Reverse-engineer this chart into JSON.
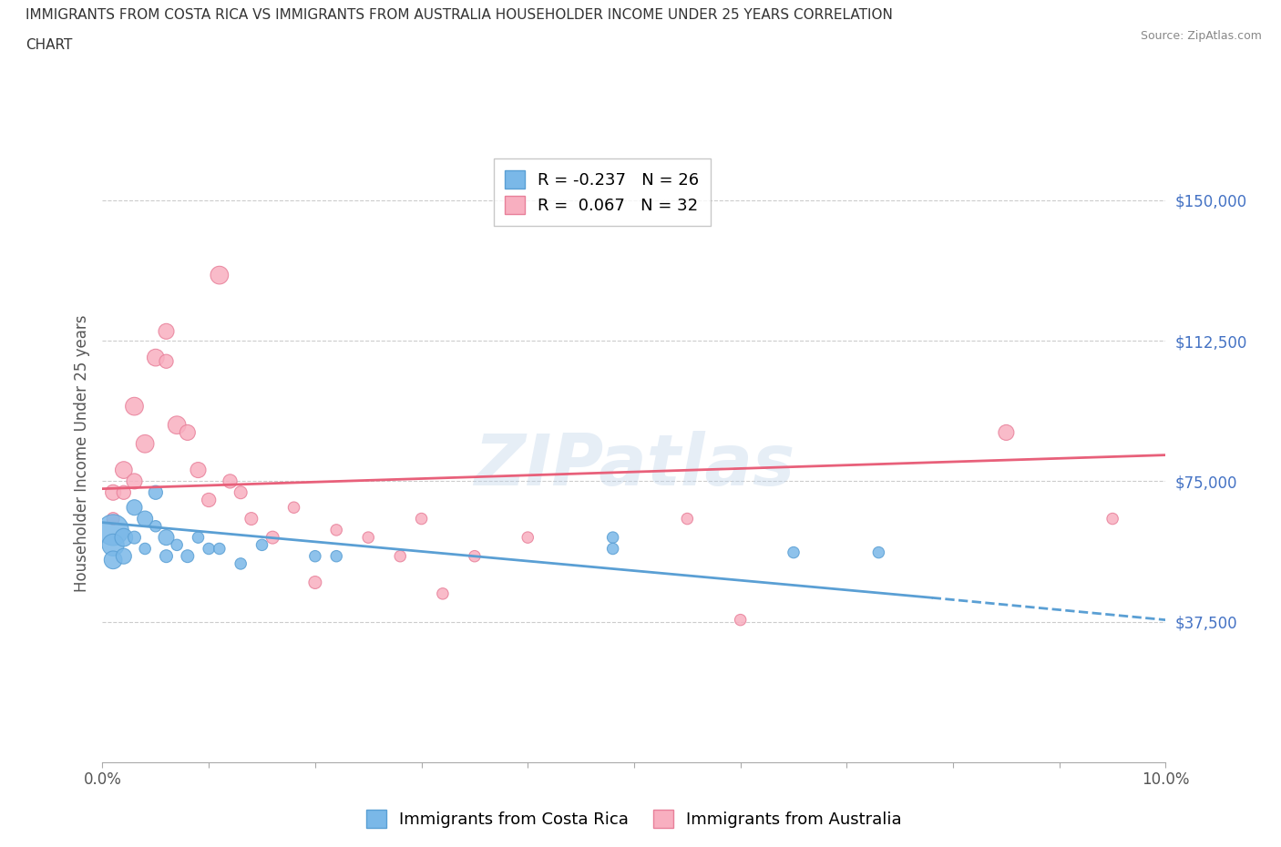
{
  "title_line1": "IMMIGRANTS FROM COSTA RICA VS IMMIGRANTS FROM AUSTRALIA HOUSEHOLDER INCOME UNDER 25 YEARS CORRELATION",
  "title_line2": "CHART",
  "source": "Source: ZipAtlas.com",
  "ylabel": "Householder Income Under 25 years",
  "xlim": [
    0,
    0.1
  ],
  "ylim": [
    0,
    165000
  ],
  "yticks": [
    37500,
    75000,
    112500,
    150000
  ],
  "ytick_labels": [
    "$37,500",
    "$75,000",
    "$112,500",
    "$150,000"
  ],
  "xticks": [
    0.0,
    0.01,
    0.02,
    0.03,
    0.04,
    0.05,
    0.06,
    0.07,
    0.08,
    0.09,
    0.1
  ],
  "xtick_labels": [
    "0.0%",
    "",
    "",
    "",
    "",
    "",
    "",
    "",
    "",
    "",
    "10.0%"
  ],
  "costa_rica_color": "#7ab8e8",
  "costa_rica_edge": "#5a9fd4",
  "australia_color": "#f8afc0",
  "australia_edge": "#e8809a",
  "trend_cr_color": "#5a9fd4",
  "trend_au_color": "#e8607a",
  "costa_rica_R": -0.237,
  "costa_rica_N": 26,
  "australia_R": 0.067,
  "australia_N": 32,
  "watermark": "ZIPatlas",
  "costa_rica_x": [
    0.001,
    0.001,
    0.001,
    0.002,
    0.002,
    0.003,
    0.003,
    0.004,
    0.004,
    0.005,
    0.005,
    0.006,
    0.006,
    0.007,
    0.008,
    0.009,
    0.01,
    0.011,
    0.013,
    0.015,
    0.02,
    0.022,
    0.048,
    0.048,
    0.065,
    0.073
  ],
  "costa_rica_y": [
    62000,
    58000,
    54000,
    60000,
    55000,
    68000,
    60000,
    65000,
    57000,
    72000,
    63000,
    60000,
    55000,
    58000,
    55000,
    60000,
    57000,
    57000,
    53000,
    58000,
    55000,
    55000,
    60000,
    57000,
    56000,
    56000
  ],
  "costa_rica_size": [
    600,
    300,
    200,
    200,
    150,
    150,
    100,
    150,
    80,
    120,
    80,
    150,
    100,
    80,
    100,
    80,
    80,
    80,
    80,
    80,
    80,
    80,
    80,
    80,
    80,
    80
  ],
  "australia_x": [
    0.001,
    0.001,
    0.002,
    0.002,
    0.003,
    0.003,
    0.004,
    0.005,
    0.006,
    0.006,
    0.007,
    0.008,
    0.009,
    0.01,
    0.011,
    0.012,
    0.013,
    0.014,
    0.016,
    0.018,
    0.02,
    0.022,
    0.025,
    0.028,
    0.03,
    0.032,
    0.035,
    0.04,
    0.055,
    0.06,
    0.085,
    0.095
  ],
  "australia_y": [
    72000,
    65000,
    78000,
    72000,
    95000,
    75000,
    85000,
    108000,
    115000,
    107000,
    90000,
    88000,
    78000,
    70000,
    130000,
    75000,
    72000,
    65000,
    60000,
    68000,
    48000,
    62000,
    60000,
    55000,
    65000,
    45000,
    55000,
    60000,
    65000,
    38000,
    88000,
    65000
  ],
  "australia_size": [
    150,
    100,
    180,
    120,
    200,
    150,
    200,
    180,
    150,
    120,
    200,
    150,
    150,
    120,
    200,
    120,
    100,
    100,
    100,
    80,
    100,
    80,
    80,
    80,
    80,
    80,
    80,
    80,
    80,
    80,
    150,
    80
  ],
  "trend_cr_x0": 0.0,
  "trend_cr_y0": 64000,
  "trend_cr_x1": 0.1,
  "trend_cr_y1": 38000,
  "trend_cr_dash_x0": 0.078,
  "trend_cr_dash_x1": 0.1,
  "trend_au_x0": 0.0,
  "trend_au_y0": 73000,
  "trend_au_x1": 0.1,
  "trend_au_y1": 82000
}
